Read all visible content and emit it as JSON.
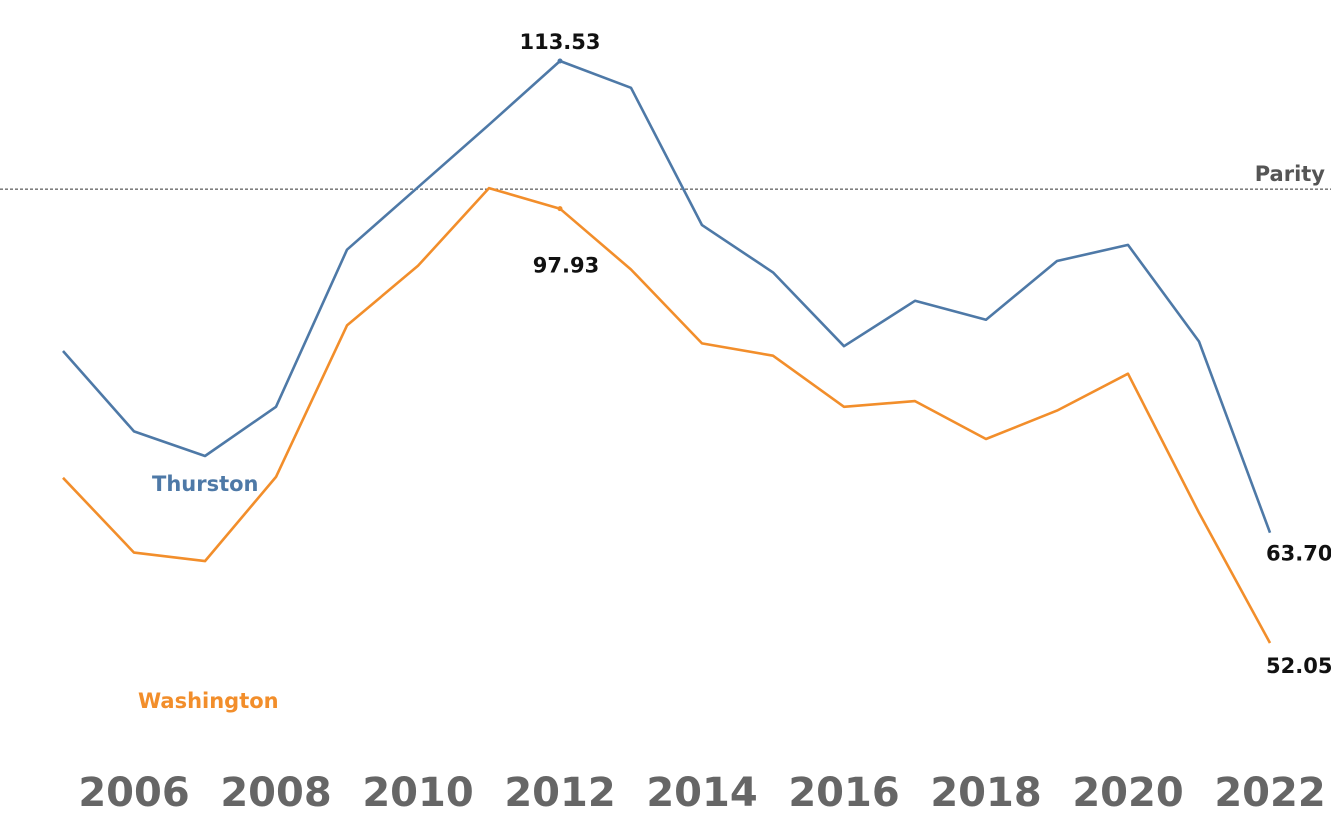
{
  "chart_data": {
    "type": "line",
    "x": [
      2005,
      2006,
      2007,
      2008,
      2009,
      2010,
      2011,
      2012,
      2013,
      2014,
      2015,
      2016,
      2017,
      2018,
      2019,
      2020,
      2021,
      2022
    ],
    "x_ticks": [
      "2006",
      "2008",
      "2010",
      "2012",
      "2014",
      "2016",
      "2018",
      "2020",
      "2022"
    ],
    "series": [
      {
        "name": "Thurston",
        "color": "#4e79a7",
        "values": [
          82.9,
          74.4,
          71.8,
          77.0,
          93.6,
          100.2,
          106.8,
          113.53,
          110.7,
          96.2,
          91.2,
          83.4,
          88.2,
          86.2,
          92.4,
          94.1,
          83.9,
          63.7
        ]
      },
      {
        "name": "Washington",
        "color": "#f28e2b",
        "values": [
          69.5,
          61.6,
          60.7,
          69.6,
          85.6,
          91.9,
          100.1,
          97.93,
          91.5,
          83.7,
          82.4,
          77.0,
          77.6,
          73.6,
          76.6,
          80.5,
          65.8,
          52.05
        ]
      }
    ],
    "data_labels": [
      {
        "series": "Thurston",
        "x": 2012,
        "text": "113.53"
      },
      {
        "series": "Washington",
        "x": 2012,
        "text": "97.93"
      },
      {
        "series": "Thurston",
        "x": 2022,
        "text": "63.70"
      },
      {
        "series": "Washington",
        "x": 2022,
        "text": "52.05"
      }
    ],
    "reference_line": {
      "label": "Parity",
      "value": 100,
      "style": "dashed"
    },
    "ylim": [
      40,
      120
    ],
    "grid": false,
    "legend": "inline series labels"
  }
}
